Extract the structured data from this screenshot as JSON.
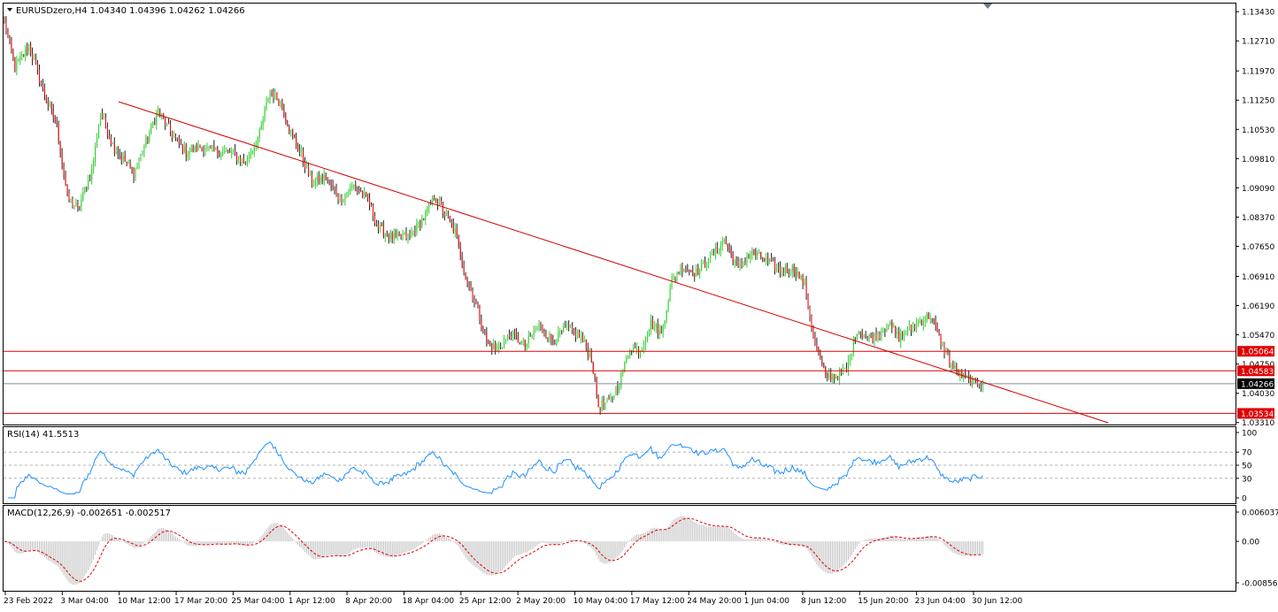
{
  "main_panel": {
    "header": "EURUSDzero,H4  1.04340 1.04396 1.04262 1.04266",
    "y_ticks": [
      "1.13430",
      "1.12710",
      "1.11970",
      "1.11250",
      "1.10530",
      "1.09810",
      "1.09090",
      "1.08370",
      "1.07650",
      "1.06910",
      "1.06190",
      "1.05470",
      "1.04750",
      "1.04030",
      "1.03310"
    ],
    "y_tick_values": [
      1.1343,
      1.1271,
      1.1197,
      1.1125,
      1.1053,
      1.0981,
      1.0909,
      1.0837,
      1.0765,
      1.0691,
      1.0619,
      1.0547,
      1.0475,
      1.0403,
      1.0331
    ],
    "ylim": [
      1.0326,
      1.1363
    ],
    "price_labels": [
      {
        "text": "1.05064",
        "value": 1.05064,
        "bg": "#e00000",
        "fg": "#ffffff"
      },
      {
        "text": "1.04583",
        "value": 1.04583,
        "bg": "#e00000",
        "fg": "#ffffff"
      },
      {
        "text": "1.04266",
        "value": 1.04266,
        "bg": "#000000",
        "fg": "#ffffff"
      },
      {
        "text": "1.03534",
        "value": 1.03534,
        "bg": "#e00000",
        "fg": "#ffffff"
      }
    ]
  },
  "rsi_panel": {
    "header": "RSI(14) 41.5513",
    "ticks": [
      "100",
      "70",
      "50",
      "30",
      "0"
    ],
    "tick_values": [
      100,
      70,
      50,
      30,
      0
    ]
  },
  "macd_panel": {
    "header": "MACD(12,26,9) -0.002651 -0.002517",
    "ticks": [
      "0.006037",
      "0.00",
      "-0.008566"
    ],
    "tick_values": [
      0.006037,
      0,
      -0.008566
    ]
  },
  "x_ticks": [
    "23 Feb 2022",
    "3 Mar 04:00",
    "10 Mar 12:00",
    "17 Mar 20:00",
    "25 Mar 04:00",
    "1 Apr 12:00",
    "8 Apr 20:00",
    "18 Apr 04:00",
    "25 Apr 12:00",
    "2 May 20:00",
    "10 May 04:00",
    "17 May 12:00",
    "24 May 20:00",
    "1 Jun 04:00",
    "8 Jun 12:00",
    "15 Jun 20:00",
    "23 Jun 04:00",
    "30 Jun 12:00"
  ],
  "colors": {
    "bull": "#32cd32",
    "bear": "#ff0000",
    "wick": "#000000",
    "level_line": "#e00000",
    "trend_line": "#d00000",
    "rsi_line": "#1e90ff",
    "macd_hist": "#c0c0c0",
    "macd_signal": "#e00000",
    "grid_dash": "#b0b0b0"
  },
  "chart_data": {
    "type": "candlestick",
    "symbol": "EURUSDzero",
    "timeframe": "H4",
    "last_ohlc": {
      "open": 1.0434,
      "high": 1.04396,
      "low": 1.04262,
      "close": 1.04266
    },
    "anchors": [
      [
        0,
        1.1315
      ],
      [
        6,
        1.1205
      ],
      [
        14,
        1.126
      ],
      [
        22,
        1.115
      ],
      [
        30,
        1.106
      ],
      [
        36,
        1.0885
      ],
      [
        42,
        1.0855
      ],
      [
        50,
        1.095
      ],
      [
        55,
        1.1095
      ],
      [
        62,
        1.1015
      ],
      [
        68,
        1.098
      ],
      [
        74,
        1.0945
      ],
      [
        80,
        1.101
      ],
      [
        88,
        1.11
      ],
      [
        96,
        1.104
      ],
      [
        104,
        1.0995
      ],
      [
        112,
        1.101
      ],
      [
        120,
        1.1
      ],
      [
        130,
        1.0995
      ],
      [
        138,
        1.097
      ],
      [
        146,
        1.104
      ],
      [
        152,
        1.115
      ],
      [
        158,
        1.112
      ],
      [
        164,
        1.1045
      ],
      [
        170,
        1.099
      ],
      [
        176,
        1.092
      ],
      [
        184,
        1.0935
      ],
      [
        192,
        1.088
      ],
      [
        200,
        1.0915
      ],
      [
        208,
        1.088
      ],
      [
        214,
        1.081
      ],
      [
        222,
        1.0785
      ],
      [
        232,
        1.079
      ],
      [
        240,
        1.0835
      ],
      [
        246,
        1.089
      ],
      [
        252,
        1.0845
      ],
      [
        258,
        1.08
      ],
      [
        264,
        1.069
      ],
      [
        270,
        1.062
      ],
      [
        276,
        1.053
      ],
      [
        282,
        1.051
      ],
      [
        290,
        1.055
      ],
      [
        298,
        1.052
      ],
      [
        306,
        1.057
      ],
      [
        314,
        1.053
      ],
      [
        322,
        1.0565
      ],
      [
        330,
        1.054
      ],
      [
        336,
        1.049
      ],
      [
        340,
        1.037
      ],
      [
        346,
        1.038
      ],
      [
        352,
        1.043
      ],
      [
        358,
        1.0515
      ],
      [
        364,
        1.051
      ],
      [
        370,
        1.0575
      ],
      [
        376,
        1.055
      ],
      [
        382,
        1.068
      ],
      [
        388,
        1.0715
      ],
      [
        396,
        1.07
      ],
      [
        404,
        1.0735
      ],
      [
        412,
        1.078
      ],
      [
        420,
        1.071
      ],
      [
        428,
        1.075
      ],
      [
        436,
        1.073
      ],
      [
        444,
        1.0705
      ],
      [
        452,
        1.071
      ],
      [
        458,
        1.067
      ],
      [
        464,
        1.052
      ],
      [
        470,
        1.0445
      ],
      [
        476,
        1.0445
      ],
      [
        482,
        1.046
      ],
      [
        488,
        1.056
      ],
      [
        494,
        1.054
      ],
      [
        500,
        1.0545
      ],
      [
        506,
        1.0575
      ],
      [
        512,
        1.054
      ],
      [
        518,
        1.056
      ],
      [
        524,
        1.058
      ],
      [
        530,
        1.0595
      ],
      [
        536,
        1.053
      ],
      [
        542,
        1.047
      ],
      [
        548,
        1.0445
      ],
      [
        554,
        1.043
      ],
      [
        560,
        1.0427
      ]
    ]
  }
}
